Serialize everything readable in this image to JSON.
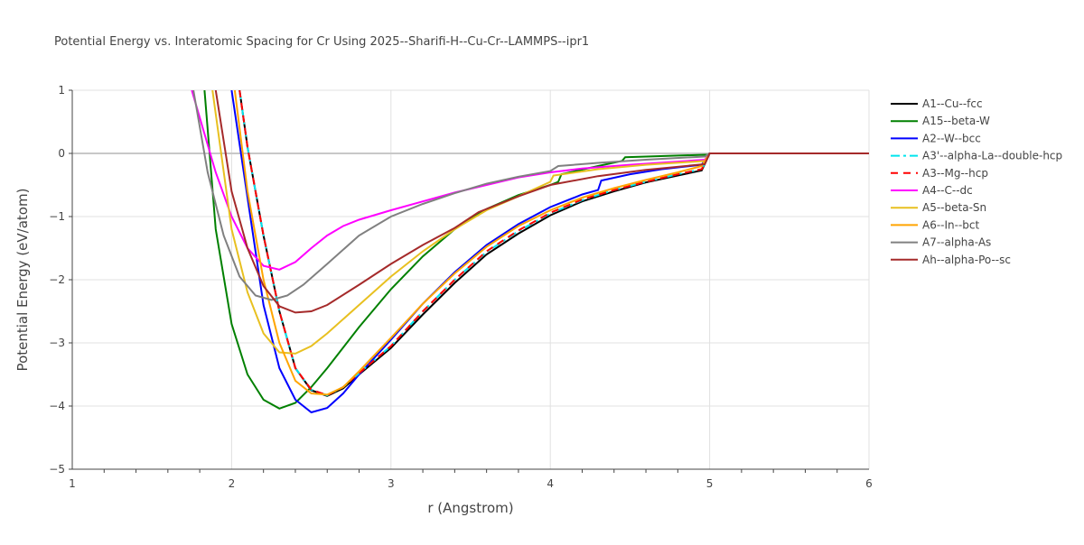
{
  "chart_data": {
    "type": "line",
    "title": "Potential Energy vs. Interatomic Spacing for Cr Using 2025--Sharifi-H--Cu-Cr--LAMMPS--ipr1",
    "xlabel": "r (Angstrom)",
    "ylabel": "Potential Energy (eV/atom)",
    "xlim": [
      1,
      6
    ],
    "ylim": [
      -5,
      1
    ],
    "xticks": [
      1,
      2,
      3,
      4,
      5,
      6
    ],
    "yticks": [
      1,
      0,
      -1,
      -2,
      -3,
      -4,
      -5
    ],
    "ytick_labels": [
      "1",
      "0",
      "−1",
      "−2",
      "−3",
      "−4",
      "−5"
    ],
    "grid": true,
    "legend_position": "right",
    "series": [
      {
        "name": "A1--Cu--fcc",
        "color": "#000000",
        "dash": "solid",
        "x": [
          2.05,
          2.1,
          2.2,
          2.3,
          2.4,
          2.5,
          2.6,
          2.7,
          2.8,
          3.0,
          3.2,
          3.4,
          3.6,
          3.8,
          4.0,
          4.2,
          4.4,
          4.6,
          4.8,
          4.95,
          5.0,
          6.0
        ],
        "y": [
          1,
          0.1,
          -1.3,
          -2.5,
          -3.4,
          -3.75,
          -3.84,
          -3.72,
          -3.5,
          -3.08,
          -2.55,
          -2.05,
          -1.6,
          -1.27,
          -0.98,
          -0.76,
          -0.6,
          -0.46,
          -0.35,
          -0.27,
          0,
          0
        ]
      },
      {
        "name": "A15--beta-W",
        "color": "#008000",
        "dash": "solid",
        "x": [
          1.83,
          1.9,
          2.0,
          2.1,
          2.2,
          2.3,
          2.4,
          2.5,
          2.6,
          2.8,
          3.0,
          3.2,
          3.4,
          3.6,
          3.8,
          4.0,
          4.05,
          4.07,
          4.3,
          4.45,
          4.47,
          4.99,
          5.0,
          6.0
        ],
        "y": [
          1,
          -1.2,
          -2.7,
          -3.5,
          -3.9,
          -4.04,
          -3.95,
          -3.7,
          -3.4,
          -2.75,
          -2.15,
          -1.63,
          -1.2,
          -0.88,
          -0.66,
          -0.5,
          -0.45,
          -0.33,
          -0.2,
          -0.12,
          -0.06,
          -0.02,
          0,
          0
        ]
      },
      {
        "name": "A2--W--bcc",
        "color": "#0000ff",
        "dash": "solid",
        "x": [
          2.0,
          2.1,
          2.2,
          2.3,
          2.4,
          2.5,
          2.6,
          2.7,
          2.8,
          3.0,
          3.2,
          3.4,
          3.6,
          3.8,
          4.0,
          4.2,
          4.3,
          4.32,
          4.5,
          4.7,
          4.95,
          5.0,
          6.0
        ],
        "y": [
          1,
          -0.7,
          -2.4,
          -3.4,
          -3.9,
          -4.1,
          -4.03,
          -3.8,
          -3.5,
          -2.95,
          -2.38,
          -1.88,
          -1.45,
          -1.12,
          -0.85,
          -0.65,
          -0.58,
          -0.43,
          -0.33,
          -0.25,
          -0.18,
          0,
          0
        ]
      },
      {
        "name": "A3'--alpha-La--double-hcp",
        "color": "#00e5ee",
        "dash": "dashdot",
        "x": [
          2.05,
          2.1,
          2.2,
          2.3,
          2.4,
          2.5,
          2.6,
          2.7,
          2.8,
          3.0,
          3.2,
          3.4,
          3.6,
          3.8,
          4.0,
          4.2,
          4.4,
          4.6,
          4.8,
          4.95,
          5.0,
          6.0
        ],
        "y": [
          1,
          0.1,
          -1.3,
          -2.5,
          -3.4,
          -3.74,
          -3.83,
          -3.7,
          -3.48,
          -3.05,
          -2.5,
          -2.0,
          -1.56,
          -1.23,
          -0.95,
          -0.74,
          -0.58,
          -0.45,
          -0.33,
          -0.25,
          0,
          0
        ]
      },
      {
        "name": "A3--Mg--hcp",
        "color": "#ff0000",
        "dash": "dash",
        "x": [
          2.05,
          2.1,
          2.2,
          2.3,
          2.4,
          2.5,
          2.6,
          2.7,
          2.8,
          3.0,
          3.2,
          3.4,
          3.6,
          3.8,
          4.0,
          4.2,
          4.4,
          4.6,
          4.8,
          4.95,
          5.0,
          6.0
        ],
        "y": [
          1,
          0.1,
          -1.3,
          -2.5,
          -3.4,
          -3.74,
          -3.83,
          -3.7,
          -3.48,
          -3.05,
          -2.5,
          -2.0,
          -1.55,
          -1.22,
          -0.94,
          -0.73,
          -0.58,
          -0.45,
          -0.33,
          -0.25,
          0,
          0
        ]
      },
      {
        "name": "A4--C--dc",
        "color": "#ff00ff",
        "dash": "solid",
        "x": [
          1.75,
          1.9,
          2.0,
          2.1,
          2.2,
          2.3,
          2.4,
          2.5,
          2.6,
          2.7,
          2.8,
          3.0,
          3.2,
          3.4,
          3.6,
          3.8,
          4.0,
          4.2,
          4.5,
          4.8,
          4.97,
          5.0,
          6.0
        ],
        "y": [
          1,
          -0.3,
          -1.0,
          -1.5,
          -1.78,
          -1.84,
          -1.72,
          -1.5,
          -1.3,
          -1.15,
          -1.05,
          -0.9,
          -0.76,
          -0.62,
          -0.5,
          -0.38,
          -0.3,
          -0.24,
          -0.18,
          -0.13,
          -0.1,
          0,
          0
        ]
      },
      {
        "name": "A5--beta-Sn",
        "color": "#e8c020",
        "dash": "solid",
        "x": [
          1.88,
          2.0,
          2.1,
          2.2,
          2.3,
          2.4,
          2.5,
          2.6,
          2.8,
          3.0,
          3.2,
          3.4,
          3.6,
          3.8,
          4.0,
          4.02,
          4.3,
          4.6,
          4.97,
          5.0,
          6.0
        ],
        "y": [
          1,
          -1.2,
          -2.2,
          -2.85,
          -3.15,
          -3.17,
          -3.05,
          -2.85,
          -2.4,
          -1.95,
          -1.55,
          -1.2,
          -0.9,
          -0.68,
          -0.45,
          -0.35,
          -0.25,
          -0.18,
          -0.12,
          0,
          0
        ]
      },
      {
        "name": "A6--In--bct",
        "color": "#ffa500",
        "dash": "solid",
        "x": [
          2.02,
          2.1,
          2.2,
          2.3,
          2.4,
          2.5,
          2.6,
          2.7,
          2.8,
          3.0,
          3.2,
          3.4,
          3.6,
          3.8,
          4.0,
          4.2,
          4.4,
          4.6,
          4.8,
          4.95,
          5.0,
          6.0
        ],
        "y": [
          1,
          -0.6,
          -2.0,
          -3.0,
          -3.6,
          -3.8,
          -3.82,
          -3.7,
          -3.45,
          -2.92,
          -2.38,
          -1.9,
          -1.48,
          -1.15,
          -0.9,
          -0.7,
          -0.55,
          -0.42,
          -0.3,
          -0.2,
          0,
          0
        ]
      },
      {
        "name": "A7--alpha-As",
        "color": "#808080",
        "dash": "solid",
        "x": [
          1.76,
          1.85,
          1.95,
          2.05,
          2.15,
          2.25,
          2.35,
          2.45,
          2.6,
          2.8,
          3.0,
          3.2,
          3.4,
          3.6,
          3.8,
          4.0,
          4.05,
          4.3,
          4.6,
          4.97,
          5.0,
          6.0
        ],
        "y": [
          1,
          -0.3,
          -1.3,
          -1.95,
          -2.25,
          -2.32,
          -2.25,
          -2.08,
          -1.75,
          -1.3,
          -1.0,
          -0.8,
          -0.63,
          -0.48,
          -0.37,
          -0.28,
          -0.2,
          -0.15,
          -0.1,
          -0.05,
          0,
          0
        ]
      },
      {
        "name": "Ah--alpha-Po--sc",
        "color": "#a52a2a",
        "dash": "solid",
        "x": [
          1.9,
          2.0,
          2.1,
          2.2,
          2.3,
          2.4,
          2.5,
          2.6,
          2.8,
          3.0,
          3.2,
          3.4,
          3.55,
          3.8,
          4.0,
          4.3,
          4.6,
          4.97,
          5.0,
          6.0
        ],
        "y": [
          1,
          -0.6,
          -1.5,
          -2.1,
          -2.42,
          -2.52,
          -2.5,
          -2.4,
          -2.08,
          -1.75,
          -1.45,
          -1.18,
          -0.93,
          -0.68,
          -0.5,
          -0.36,
          -0.26,
          -0.17,
          0,
          0
        ]
      }
    ]
  }
}
